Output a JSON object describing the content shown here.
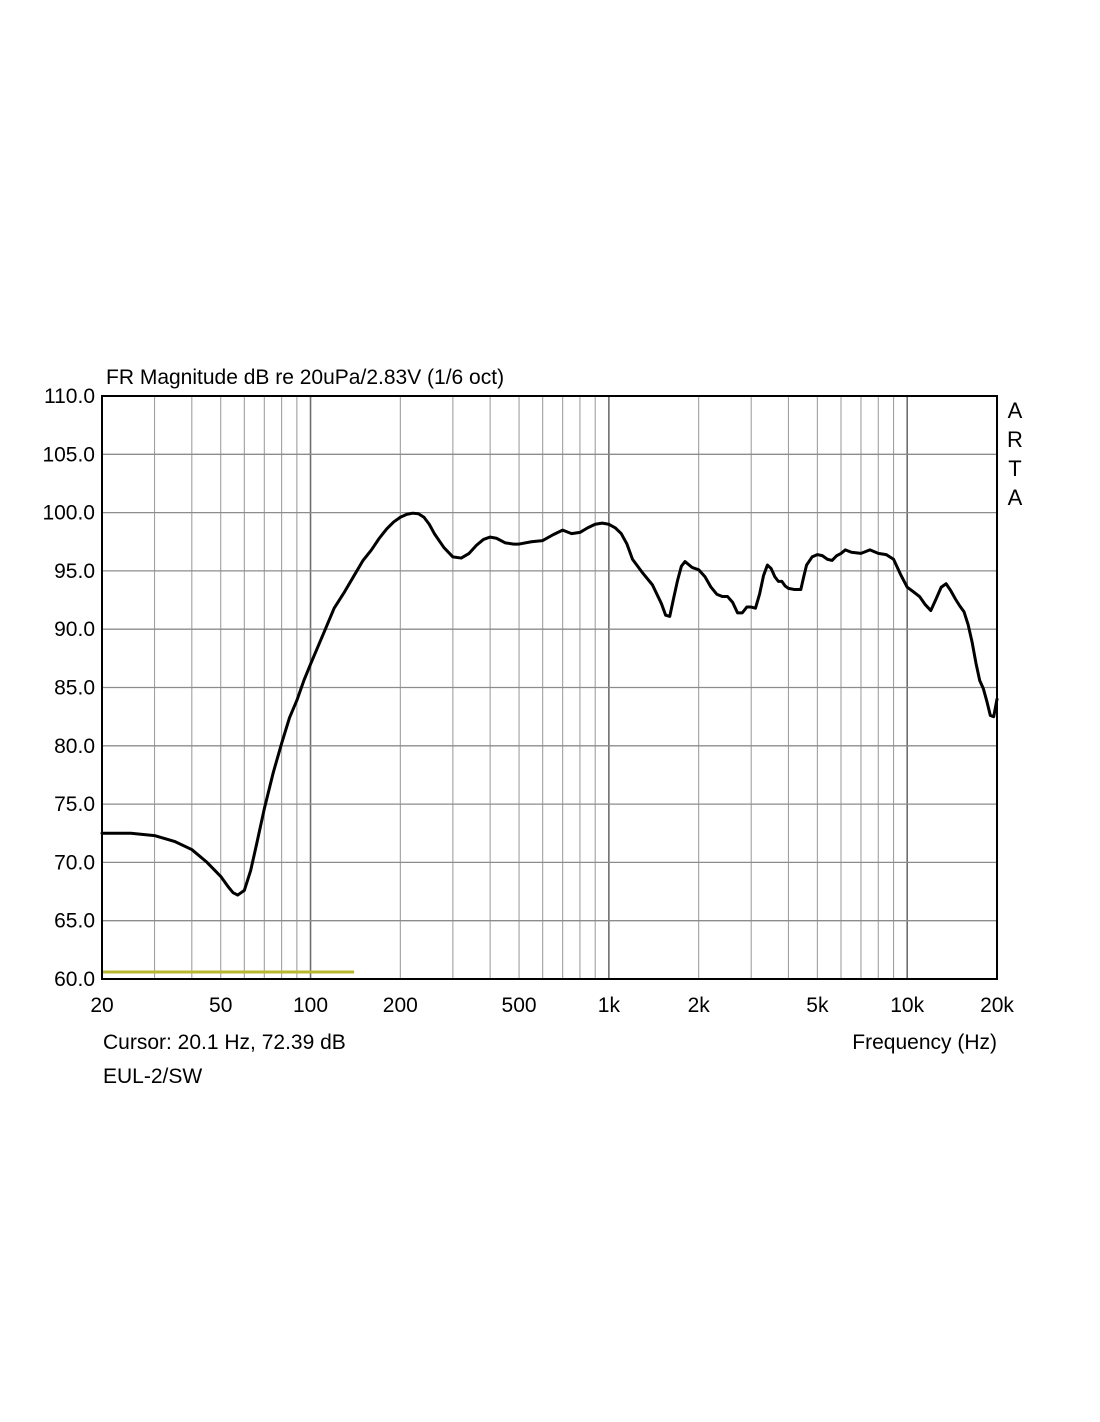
{
  "chart_data": {
    "type": "line",
    "title": "FR Magnitude dB re 20uPa/2.83V (1/6 oct)",
    "xlabel": "Frequency (Hz)",
    "ylabel": "",
    "x_scale": "log",
    "xlim": [
      20,
      20000
    ],
    "ylim": [
      60,
      110
    ],
    "grid": true,
    "ytick_labels": [
      "110.0",
      "105.0",
      "100.0",
      "95.0",
      "90.0",
      "85.0",
      "80.0",
      "75.0",
      "70.0",
      "65.0",
      "60.0"
    ],
    "xtick_labels": [
      {
        "value": 20,
        "label": "20"
      },
      {
        "value": 50,
        "label": "50"
      },
      {
        "value": 100,
        "label": "100"
      },
      {
        "value": 200,
        "label": "200"
      },
      {
        "value": 500,
        "label": "500"
      },
      {
        "value": 1000,
        "label": "1k"
      },
      {
        "value": 2000,
        "label": "2k"
      },
      {
        "value": 5000,
        "label": "5k"
      },
      {
        "value": 10000,
        "label": "10k"
      },
      {
        "value": 20000,
        "label": "20k"
      }
    ],
    "brand": [
      "A",
      "R",
      "T",
      "A"
    ],
    "cursor_text": "Cursor: 20.1 Hz, 72.39 dB",
    "name_text": "EUL-2/SW",
    "colors": {
      "curve": "#000000",
      "grid": "#a0a0a0",
      "reference": "#b8b830"
    },
    "reference_line": {
      "x": [
        20,
        140
      ],
      "y": 60.6
    },
    "series": [
      {
        "x": [
          20,
          25,
          30,
          35,
          40,
          45,
          50,
          53,
          55,
          57,
          60,
          63,
          66,
          70,
          75,
          80,
          85,
          90,
          95,
          100,
          110,
          120,
          130,
          140,
          150,
          160,
          170,
          180,
          190,
          200,
          210,
          220,
          230,
          240,
          250,
          260,
          280,
          300,
          320,
          340,
          360,
          380,
          400,
          420,
          450,
          480,
          500,
          550,
          600,
          650,
          700,
          750,
          800,
          850,
          900,
          950,
          1000,
          1050,
          1100,
          1150,
          1200,
          1300,
          1400,
          1500,
          1550,
          1600,
          1650,
          1700,
          1750,
          1800,
          1900,
          2000,
          2100,
          2200,
          2300,
          2400,
          2500,
          2600,
          2700,
          2800,
          2900,
          3000,
          3100,
          3200,
          3300,
          3400,
          3500,
          3600,
          3700,
          3800,
          3900,
          4000,
          4200,
          4400,
          4500,
          4600,
          4800,
          5000,
          5200,
          5400,
          5600,
          5800,
          6000,
          6200,
          6500,
          7000,
          7500,
          8000,
          8500,
          9000,
          9500,
          10000,
          10500,
          11000,
          11500,
          12000,
          12500,
          13000,
          13500,
          14000,
          14500,
          15000,
          15500,
          16000,
          16500,
          17000,
          17500,
          18000,
          18500,
          19000,
          19500,
          20000
        ],
        "y": [
          72.5,
          72.5,
          72.3,
          71.8,
          71.1,
          70.0,
          68.8,
          67.9,
          67.4,
          67.2,
          67.6,
          69.3,
          71.6,
          74.6,
          77.7,
          80.2,
          82.4,
          83.9,
          85.6,
          87.0,
          89.5,
          91.8,
          93.2,
          94.6,
          95.9,
          96.8,
          97.8,
          98.6,
          99.2,
          99.6,
          99.85,
          99.95,
          99.9,
          99.6,
          99.0,
          98.2,
          97.0,
          96.2,
          96.1,
          96.5,
          97.2,
          97.7,
          97.9,
          97.8,
          97.4,
          97.3,
          97.3,
          97.5,
          97.6,
          98.1,
          98.5,
          98.2,
          98.3,
          98.7,
          99.0,
          99.1,
          99.0,
          98.7,
          98.2,
          97.3,
          96.0,
          94.8,
          93.8,
          92.2,
          91.2,
          91.1,
          92.7,
          94.2,
          95.4,
          95.8,
          95.3,
          95.1,
          94.5,
          93.6,
          93.0,
          92.8,
          92.8,
          92.3,
          91.4,
          91.4,
          91.9,
          91.9,
          91.8,
          93.0,
          94.6,
          95.5,
          95.2,
          94.5,
          94.1,
          94.1,
          93.7,
          93.5,
          93.4,
          93.4,
          94.5,
          95.5,
          96.2,
          96.4,
          96.3,
          96.0,
          95.9,
          96.3,
          96.5,
          96.8,
          96.6,
          96.5,
          96.8,
          96.5,
          96.4,
          96.0,
          94.7,
          93.6,
          93.2,
          92.8,
          92.1,
          91.6,
          92.6,
          93.6,
          93.9,
          93.3,
          92.6,
          92.0,
          91.5,
          90.4,
          88.9,
          87.1,
          85.6,
          84.9,
          83.8,
          82.6,
          82.5,
          84.0
        ]
      }
    ]
  }
}
